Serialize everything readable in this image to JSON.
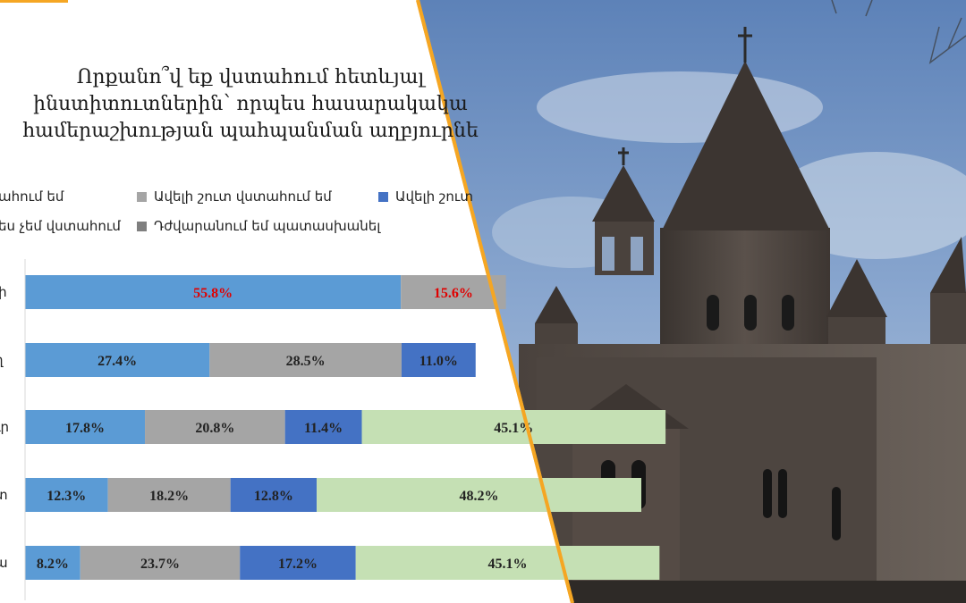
{
  "colors": {
    "series": [
      "#5b9bd5",
      "#a5a5a5",
      "#4472c4",
      "#c5e0b4",
      "#7f7f7f"
    ],
    "accent_border": "#f5a623",
    "highlight_text": "#e00000"
  },
  "chart_data": {
    "type": "bar",
    "orientation": "horizontal",
    "stacked": true,
    "title_lines": [
      "Որքանո՞վ եք վստահում հետևյալ",
      "ինստիտուտներին՝ որպես հասարակակա",
      "համերաշխության պահպանման աղբյուրնե"
    ],
    "legend_placement": "top",
    "legend": [
      "ահում եմ",
      "Ավելի շուտ վստահում եմ",
      "Ավելի շուտ",
      "ես չեմ վստահում",
      "Դժվարանում եմ պատասխանել"
    ],
    "categories": [
      "լի",
      "ղ",
      "ւր",
      "տ",
      "ա"
    ],
    "series": [
      {
        "values": [
          55.8,
          27.4,
          17.8,
          12.3,
          8.2
        ]
      },
      {
        "values": [
          15.6,
          28.5,
          20.8,
          18.2,
          23.7
        ]
      },
      {
        "values": [
          null,
          11.0,
          11.4,
          12.8,
          17.2
        ]
      },
      {
        "values": [
          null,
          null,
          45.1,
          48.2,
          45.1
        ]
      }
    ],
    "data_labels": [
      [
        "55.8%",
        "15.6%",
        null,
        null
      ],
      [
        "27.4%",
        "28.5%",
        "11.0%",
        null
      ],
      [
        "17.8%",
        "20.8%",
        "11.4%",
        "45.1%"
      ],
      [
        "12.3%",
        "18.2%",
        "12.8%",
        "48.2%"
      ],
      [
        "8.2%",
        "23.7%",
        "17.2%",
        "45.1%"
      ]
    ],
    "highlighted_labels": [
      "55.8%",
      "15.6%"
    ],
    "grid": false
  }
}
